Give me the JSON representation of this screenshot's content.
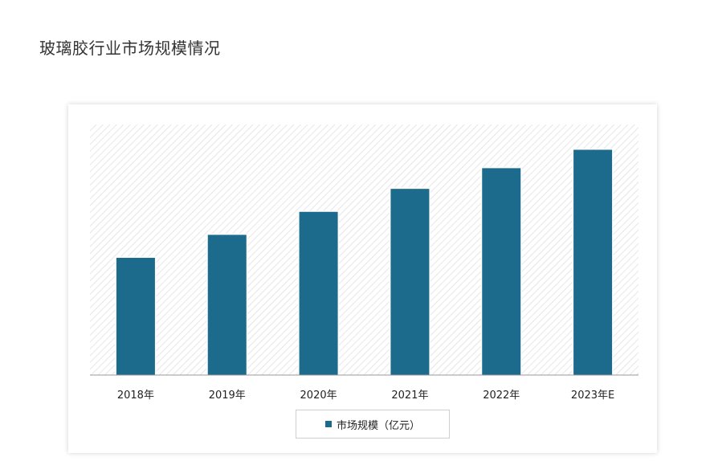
{
  "page": {
    "title": "玻璃胶行业市场规模情况"
  },
  "chart_data": {
    "type": "bar",
    "categories": [
      "2018年",
      "2019年",
      "2020年",
      "2021年",
      "2022年",
      "2023年E"
    ],
    "series": [
      {
        "name": "市场规模（亿元）",
        "values": [
          51,
          61,
          71,
          81,
          90,
          98
        ]
      }
    ],
    "ylim": [
      0,
      109
    ],
    "grid": false,
    "legend_position": "bottom",
    "colors": {
      "bar": "#1c6a8c",
      "axis": "#9a9a9a",
      "plot_hatch": "#dcdcdc"
    }
  }
}
